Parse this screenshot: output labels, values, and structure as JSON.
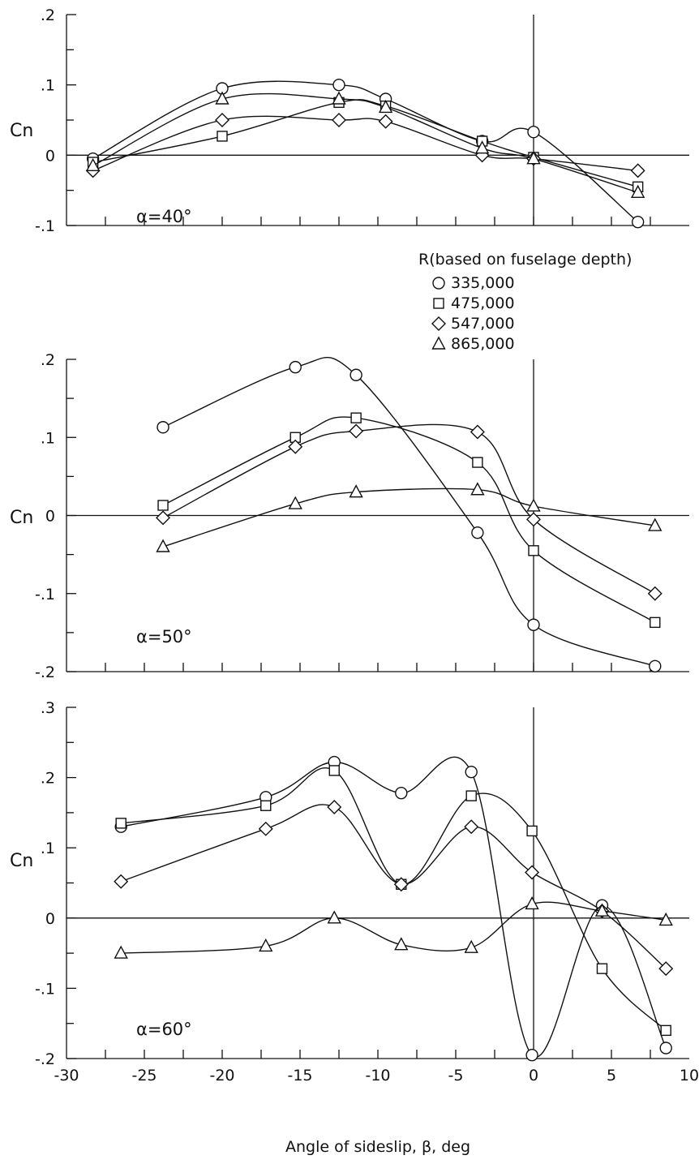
{
  "legend": {
    "title": "R(based on fuselage depth)",
    "entries": [
      {
        "marker": "circle",
        "label": "335,000"
      },
      {
        "marker": "square",
        "label": "475,000"
      },
      {
        "marker": "diamond",
        "label": "547,000"
      },
      {
        "marker": "triangle",
        "label": "865,000"
      }
    ]
  },
  "chart_data": [
    {
      "type": "line",
      "annotation": "α=40°",
      "ylabel": "Cn",
      "xlabel": "",
      "xlim": [
        -30,
        10
      ],
      "ylim": [
        -0.1,
        0.2
      ],
      "yticks": [
        -0.1,
        0,
        0.1,
        0.2
      ],
      "ytick_labels": [
        "-.1",
        "0",
        ".1",
        ".2"
      ],
      "series": [
        {
          "name": "335,000",
          "marker": "circle",
          "x": [
            -28.3,
            -20.0,
            -12.5,
            -9.5,
            -3.3,
            0,
            6.7
          ],
          "y": [
            -0.005,
            0.095,
            0.1,
            0.08,
            0.02,
            0.033,
            -0.095
          ]
        },
        {
          "name": "475,000",
          "marker": "square",
          "x": [
            -28.3,
            -20.0,
            -12.5,
            -9.5,
            -3.3,
            0,
            6.7
          ],
          "y": [
            -0.01,
            0.027,
            0.075,
            0.07,
            0.02,
            -0.003,
            -0.045
          ]
        },
        {
          "name": "547,000",
          "marker": "diamond",
          "x": [
            -28.3,
            -20.0,
            -12.5,
            -9.5,
            -3.3,
            0,
            6.7
          ],
          "y": [
            -0.022,
            0.05,
            0.05,
            0.048,
            0.0,
            -0.005,
            -0.022
          ]
        },
        {
          "name": "865,000",
          "marker": "triangle",
          "x": [
            -28.3,
            -20.0,
            -12.5,
            -9.5,
            -3.3,
            0,
            6.7
          ],
          "y": [
            -0.015,
            0.08,
            0.08,
            0.068,
            0.01,
            -0.005,
            -0.053
          ]
        }
      ]
    },
    {
      "type": "line",
      "annotation": "α=50°",
      "ylabel": "Cn",
      "xlabel": "",
      "xlim": [
        -30,
        10
      ],
      "ylim": [
        -0.2,
        0.2
      ],
      "yticks": [
        -0.2,
        -0.1,
        0,
        0.1,
        0.2
      ],
      "ytick_labels": [
        "-.2",
        "-.1",
        "0",
        ".1",
        ".2"
      ],
      "series": [
        {
          "name": "335,000",
          "marker": "circle",
          "x": [
            -23.8,
            -15.3,
            -11.4,
            -3.6,
            0,
            7.8
          ],
          "y": [
            0.113,
            0.19,
            0.18,
            -0.022,
            -0.14,
            -0.193
          ]
        },
        {
          "name": "475,000",
          "marker": "square",
          "x": [
            -23.8,
            -15.3,
            -11.4,
            -3.6,
            0,
            7.8
          ],
          "y": [
            0.013,
            0.1,
            0.125,
            0.068,
            -0.045,
            -0.137
          ]
        },
        {
          "name": "547,000",
          "marker": "diamond",
          "x": [
            -23.8,
            -15.3,
            -11.4,
            -3.6,
            0,
            7.8
          ],
          "y": [
            -0.003,
            0.088,
            0.108,
            0.107,
            -0.005,
            -0.1
          ]
        },
        {
          "name": "865,000",
          "marker": "triangle",
          "x": [
            -23.8,
            -15.3,
            -11.4,
            -3.6,
            0,
            7.8
          ],
          "y": [
            -0.04,
            0.015,
            0.03,
            0.033,
            0.012,
            -0.013
          ]
        }
      ]
    },
    {
      "type": "line",
      "annotation": "α=60°",
      "ylabel": "Cn",
      "xlabel": "Angle of sideslip, β, deg",
      "xlim": [
        -30,
        10
      ],
      "ylim": [
        -0.2,
        0.3
      ],
      "yticks": [
        -0.2,
        -0.1,
        0,
        0.1,
        0.2,
        0.3
      ],
      "ytick_labels": [
        "-.2",
        "-.1",
        "0",
        ".1",
        ".2",
        ".3"
      ],
      "xticks": [
        -30,
        -25,
        -20,
        -15,
        -10,
        -5,
        0,
        5,
        10
      ],
      "xtick_labels": [
        "-30",
        "-25",
        "-20",
        "-15",
        "-10",
        "-5",
        "0",
        "5",
        "10"
      ],
      "series": [
        {
          "name": "335,000",
          "marker": "circle",
          "x": [
            -26.5,
            -17.2,
            -12.8,
            -8.5,
            -4.0,
            -0.1,
            4.4,
            8.5
          ],
          "y": [
            0.13,
            0.172,
            0.222,
            0.178,
            0.208,
            -0.195,
            0.018,
            -0.185
          ]
        },
        {
          "name": "475,000",
          "marker": "square",
          "x": [
            -26.5,
            -17.2,
            -12.8,
            -8.5,
            -4.0,
            -0.1,
            4.4,
            8.5
          ],
          "y": [
            0.135,
            0.16,
            0.21,
            0.048,
            0.174,
            0.124,
            -0.072,
            -0.16
          ]
        },
        {
          "name": "547,000",
          "marker": "diamond",
          "x": [
            -26.5,
            -17.2,
            -12.8,
            -8.5,
            -4.0,
            -0.1,
            4.4,
            8.5
          ],
          "y": [
            0.052,
            0.127,
            0.158,
            0.048,
            0.13,
            0.065,
            0.01,
            -0.072
          ]
        },
        {
          "name": "865,000",
          "marker": "triangle",
          "x": [
            -26.5,
            -17.2,
            -12.8,
            -8.5,
            -4.0,
            -0.1,
            4.4,
            8.5
          ],
          "y": [
            -0.05,
            -0.04,
            0.0,
            -0.038,
            -0.042,
            0.02,
            0.01,
            -0.003
          ]
        }
      ]
    }
  ]
}
